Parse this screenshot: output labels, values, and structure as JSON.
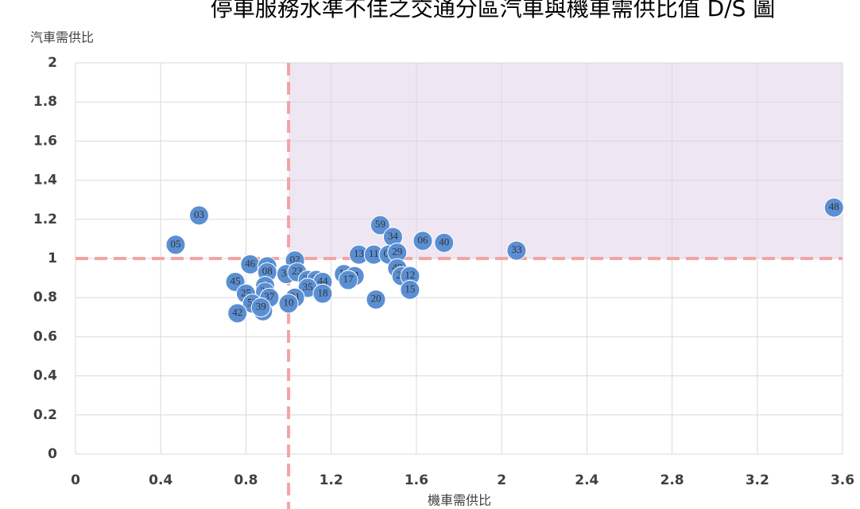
{
  "chart_data": {
    "type": "scatter",
    "title": "停車服務水準不佳之交通分區汽車與機車需供比值 D/S 圖",
    "x_label": "機車需供比",
    "y_label": "汽車需供比",
    "labels": [
      "48",
      "03",
      "05",
      "59",
      "34",
      "06",
      "40",
      "33",
      "13",
      "11",
      "09",
      "29",
      "02",
      "46",
      "16",
      "49",
      "27",
      "12",
      "14",
      "51",
      "17",
      "30",
      "23",
      "08",
      "45",
      "32",
      "22",
      "44",
      "15",
      "35",
      "18",
      "25",
      "38",
      "26",
      "37",
      "21",
      "20",
      "50",
      "10",
      "42",
      "54",
      "39"
    ],
    "x": [
      3.56,
      0.58,
      0.47,
      1.43,
      1.49,
      1.63,
      1.73,
      2.07,
      1.33,
      1.4,
      1.47,
      1.51,
      1.03,
      0.82,
      0.9,
      1.51,
      1.53,
      1.57,
      1.26,
      1.31,
      1.28,
      0.99,
      1.04,
      0.9,
      0.75,
      1.09,
      1.13,
      1.16,
      1.57,
      1.09,
      1.16,
      0.8,
      0.89,
      0.89,
      0.91,
      1.03,
      1.41,
      0.83,
      1.0,
      0.76,
      0.88,
      0.87
    ],
    "y": [
      1.26,
      1.22,
      1.07,
      1.17,
      1.11,
      1.09,
      1.08,
      1.04,
      1.02,
      1.02,
      1.02,
      1.03,
      0.99,
      0.97,
      0.96,
      0.95,
      0.91,
      0.91,
      0.92,
      0.91,
      0.89,
      0.92,
      0.93,
      0.93,
      0.88,
      0.89,
      0.89,
      0.88,
      0.84,
      0.85,
      0.82,
      0.82,
      0.86,
      0.83,
      0.8,
      0.8,
      0.79,
      0.77,
      0.77,
      0.72,
      0.73,
      0.75
    ],
    "color": "#5b8fd3",
    "xlim": [
      0,
      3.6
    ],
    "ylim": [
      0,
      2
    ],
    "xticks": [
      0,
      0.4,
      0.8,
      1.2,
      1.6,
      2,
      2.4,
      2.8,
      3.2,
      3.6
    ],
    "yticks": [
      0,
      0.2,
      0.4,
      0.6,
      0.8,
      1,
      1.2,
      1.4,
      1.6,
      1.8,
      2
    ],
    "grid": true,
    "reference_lines": {
      "x": 1,
      "y": 1,
      "color": "#f4a3a3"
    },
    "highlight_region": {
      "x": [
        1,
        3.6
      ],
      "y": [
        1,
        2
      ],
      "color": "#efe6f3"
    }
  }
}
